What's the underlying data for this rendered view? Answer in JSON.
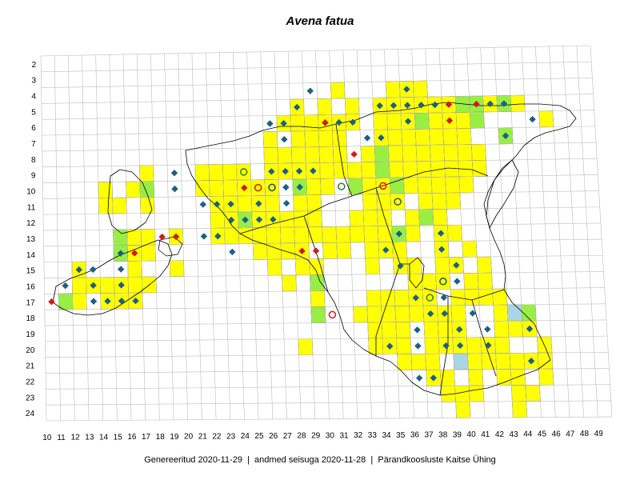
{
  "title": "Avena fatua",
  "footer": {
    "generated": "Genereeritud 2020-11-29",
    "data_state": "andmed seisuga 2020-11-28",
    "org": "Pärandkoosluste Kaitse Ühing",
    "separator": "|"
  },
  "colors": {
    "grid_line": "#bdbdbd",
    "outline": "#000000",
    "cell_yellow": "#ffff00",
    "cell_green": "#99ee44",
    "cell_blue": "#a9d6e5",
    "diamond_blue": "#1a5f8a",
    "diamond_red": "#d11a1a",
    "circle_green": "#2e7d32",
    "circle_red": "#d11a1a",
    "circle_blue": "#1a5f8a"
  },
  "legend_symbols": {
    "diamond": "diamond-marker",
    "circle": "circle-marker"
  },
  "chart_data": {
    "type": "grid-distribution-map",
    "x_ticks": [
      "10",
      "11",
      "12",
      "13",
      "14",
      "15",
      "16",
      "17",
      "18",
      "19",
      "20",
      "21",
      "22",
      "23",
      "24",
      "25",
      "26",
      "27",
      "28",
      "29",
      "30",
      "31",
      "32",
      "33",
      "34",
      "35",
      "36",
      "37",
      "38",
      "39",
      "40",
      "41",
      "42",
      "43",
      "44",
      "45",
      "46",
      "47",
      "48",
      "49"
    ],
    "y_ticks": [
      "2",
      "3",
      "4",
      "5",
      "6",
      "7",
      "8",
      "9",
      "10",
      "11",
      "12",
      "13",
      "14",
      "15",
      "16",
      "17",
      "18",
      "19",
      "20",
      "21",
      "22",
      "23",
      "24"
    ],
    "cells": {
      "yellow": [
        [
          35,
          4
        ],
        [
          36,
          4
        ],
        [
          37,
          4
        ],
        [
          31,
          4
        ],
        [
          28,
          5
        ],
        [
          30,
          5
        ],
        [
          32,
          5
        ],
        [
          34,
          5
        ],
        [
          35,
          5
        ],
        [
          36,
          5
        ],
        [
          37,
          5
        ],
        [
          38,
          5
        ],
        [
          39,
          5
        ],
        [
          42,
          5
        ],
        [
          44,
          5
        ],
        [
          27,
          6
        ],
        [
          28,
          6
        ],
        [
          29,
          6
        ],
        [
          30,
          6
        ],
        [
          31,
          6
        ],
        [
          32,
          6
        ],
        [
          34,
          6
        ],
        [
          35,
          6
        ],
        [
          36,
          6
        ],
        [
          37,
          6
        ],
        [
          38,
          6
        ],
        [
          39,
          6
        ],
        [
          40,
          6
        ],
        [
          46,
          6
        ],
        [
          26,
          7
        ],
        [
          28,
          7
        ],
        [
          29,
          7
        ],
        [
          30,
          7
        ],
        [
          31,
          7
        ],
        [
          34,
          7
        ],
        [
          35,
          7
        ],
        [
          36,
          7
        ],
        [
          37,
          7
        ],
        [
          38,
          7
        ],
        [
          39,
          7
        ],
        [
          40,
          7
        ],
        [
          26,
          8
        ],
        [
          27,
          8
        ],
        [
          28,
          8
        ],
        [
          29,
          8
        ],
        [
          30,
          8
        ],
        [
          31,
          8
        ],
        [
          33,
          8
        ],
        [
          35,
          8
        ],
        [
          36,
          8
        ],
        [
          37,
          8
        ],
        [
          38,
          8
        ],
        [
          39,
          8
        ],
        [
          40,
          8
        ],
        [
          41,
          8
        ],
        [
          17,
          9
        ],
        [
          21,
          9
        ],
        [
          22,
          9
        ],
        [
          23,
          9
        ],
        [
          24,
          9
        ],
        [
          26,
          9
        ],
        [
          27,
          9
        ],
        [
          28,
          9
        ],
        [
          29,
          9
        ],
        [
          30,
          9
        ],
        [
          31,
          9
        ],
        [
          32,
          9
        ],
        [
          33,
          9
        ],
        [
          35,
          9
        ],
        [
          36,
          9
        ],
        [
          37,
          9
        ],
        [
          38,
          9
        ],
        [
          39,
          9
        ],
        [
          40,
          9
        ],
        [
          41,
          9
        ],
        [
          14,
          10
        ],
        [
          16,
          10
        ],
        [
          21,
          10
        ],
        [
          22,
          10
        ],
        [
          23,
          10
        ],
        [
          24,
          10
        ],
        [
          25,
          10
        ],
        [
          26,
          10
        ],
        [
          28,
          10
        ],
        [
          29,
          10
        ],
        [
          30,
          10
        ],
        [
          32,
          10
        ],
        [
          33,
          10
        ],
        [
          34,
          10
        ],
        [
          36,
          10
        ],
        [
          37,
          10
        ],
        [
          38,
          10
        ],
        [
          39,
          10
        ],
        [
          40,
          10
        ],
        [
          14,
          11
        ],
        [
          15,
          11
        ],
        [
          17,
          11
        ],
        [
          22,
          11
        ],
        [
          23,
          11
        ],
        [
          24,
          11
        ],
        [
          25,
          11
        ],
        [
          26,
          11
        ],
        [
          28,
          11
        ],
        [
          29,
          11
        ],
        [
          33,
          11
        ],
        [
          34,
          11
        ],
        [
          35,
          11
        ],
        [
          37,
          11
        ],
        [
          38,
          11
        ],
        [
          39,
          11
        ],
        [
          22,
          12
        ],
        [
          23,
          12
        ],
        [
          24,
          12
        ],
        [
          25,
          12
        ],
        [
          26,
          12
        ],
        [
          27,
          12
        ],
        [
          28,
          12
        ],
        [
          29,
          12
        ],
        [
          32,
          12
        ],
        [
          33,
          12
        ],
        [
          34,
          12
        ],
        [
          36,
          12
        ],
        [
          37,
          12
        ],
        [
          38,
          12
        ],
        [
          16,
          13
        ],
        [
          17,
          13
        ],
        [
          19,
          13
        ],
        [
          22,
          13
        ],
        [
          23,
          13
        ],
        [
          24,
          13
        ],
        [
          25,
          13
        ],
        [
          26,
          13
        ],
        [
          27,
          13
        ],
        [
          28,
          13
        ],
        [
          29,
          13
        ],
        [
          30,
          13
        ],
        [
          31,
          13
        ],
        [
          32,
          13
        ],
        [
          33,
          13
        ],
        [
          34,
          13
        ],
        [
          36,
          13
        ],
        [
          38,
          13
        ],
        [
          39,
          13
        ],
        [
          16,
          14
        ],
        [
          17,
          14
        ],
        [
          25,
          14
        ],
        [
          26,
          14
        ],
        [
          27,
          14
        ],
        [
          28,
          14
        ],
        [
          30,
          14
        ],
        [
          31,
          14
        ],
        [
          33,
          14
        ],
        [
          34,
          14
        ],
        [
          35,
          14
        ],
        [
          38,
          14
        ],
        [
          40,
          14
        ],
        [
          12,
          15
        ],
        [
          16,
          15
        ],
        [
          19,
          15
        ],
        [
          26,
          15
        ],
        [
          28,
          15
        ],
        [
          29,
          15
        ],
        [
          33,
          15
        ],
        [
          35,
          15
        ],
        [
          36,
          15
        ],
        [
          38,
          15
        ],
        [
          39,
          15
        ],
        [
          41,
          15
        ],
        [
          12,
          16
        ],
        [
          13,
          16
        ],
        [
          14,
          16
        ],
        [
          15,
          16
        ],
        [
          16,
          16
        ],
        [
          17,
          16
        ],
        [
          27,
          16
        ],
        [
          29,
          16
        ],
        [
          36,
          16
        ],
        [
          37,
          16
        ],
        [
          38,
          16
        ],
        [
          40,
          16
        ],
        [
          41,
          16
        ],
        [
          11,
          17
        ],
        [
          12,
          17
        ],
        [
          14,
          17
        ],
        [
          15,
          17
        ],
        [
          16,
          17
        ],
        [
          29,
          17
        ],
        [
          33,
          17
        ],
        [
          34,
          17
        ],
        [
          35,
          17
        ],
        [
          36,
          17
        ],
        [
          37,
          17
        ],
        [
          39,
          17
        ],
        [
          40,
          17
        ],
        [
          41,
          17
        ],
        [
          42,
          17
        ],
        [
          29,
          18
        ],
        [
          32,
          18
        ],
        [
          33,
          18
        ],
        [
          34,
          18
        ],
        [
          35,
          18
        ],
        [
          36,
          18
        ],
        [
          37,
          18
        ],
        [
          38,
          18
        ],
        [
          39,
          18
        ],
        [
          42,
          18
        ],
        [
          43,
          18
        ],
        [
          33,
          19
        ],
        [
          34,
          19
        ],
        [
          35,
          19
        ],
        [
          37,
          19
        ],
        [
          38,
          19
        ],
        [
          39,
          19
        ],
        [
          42,
          19
        ],
        [
          43,
          19
        ],
        [
          44,
          19
        ],
        [
          28,
          20
        ],
        [
          33,
          20
        ],
        [
          34,
          20
        ],
        [
          35,
          20
        ],
        [
          37,
          20
        ],
        [
          38,
          20
        ],
        [
          39,
          20
        ],
        [
          40,
          20
        ],
        [
          41,
          20
        ],
        [
          42,
          20
        ],
        [
          45,
          20
        ],
        [
          35,
          21
        ],
        [
          36,
          21
        ],
        [
          37,
          21
        ],
        [
          39,
          21
        ],
        [
          40,
          21
        ],
        [
          41,
          21
        ],
        [
          42,
          21
        ],
        [
          43,
          21
        ],
        [
          44,
          21
        ],
        [
          45,
          21
        ],
        [
          37,
          22
        ],
        [
          38,
          22
        ],
        [
          40,
          22
        ],
        [
          42,
          22
        ],
        [
          43,
          22
        ],
        [
          45,
          22
        ],
        [
          38,
          23
        ],
        [
          39,
          23
        ],
        [
          40,
          23
        ],
        [
          43,
          23
        ],
        [
          44,
          23
        ],
        [
          39,
          24
        ],
        [
          43,
          24
        ]
      ],
      "green": [
        [
          40,
          5
        ],
        [
          41,
          5
        ],
        [
          43,
          5
        ],
        [
          37,
          6
        ],
        [
          41,
          6
        ],
        [
          43,
          7
        ],
        [
          34,
          8
        ],
        [
          34,
          9
        ],
        [
          17,
          10
        ],
        [
          28,
          10
        ],
        [
          32,
          10
        ],
        [
          35,
          10
        ],
        [
          15,
          13
        ],
        [
          35,
          13
        ],
        [
          15,
          14
        ],
        [
          24,
          12
        ],
        [
          29,
          16
        ],
        [
          11,
          17
        ],
        [
          29,
          18
        ],
        [
          44,
          18
        ],
        [
          37,
          12
        ]
      ],
      "blue": [
        [
          43,
          18
        ],
        [
          39,
          21
        ]
      ]
    },
    "markers": {
      "diamond_blue": [
        [
          29,
          4
        ],
        [
          36,
          4
        ],
        [
          28,
          5
        ],
        [
          34,
          5
        ],
        [
          35,
          5
        ],
        [
          36,
          5
        ],
        [
          37,
          5
        ],
        [
          38,
          5
        ],
        [
          42,
          5
        ],
        [
          43,
          5
        ],
        [
          26,
          6
        ],
        [
          27,
          6
        ],
        [
          30,
          6
        ],
        [
          31,
          6
        ],
        [
          32,
          6
        ],
        [
          36,
          6
        ],
        [
          45,
          6
        ],
        [
          27,
          7
        ],
        [
          33,
          7
        ],
        [
          34,
          7
        ],
        [
          43,
          7
        ],
        [
          19,
          9
        ],
        [
          26,
          9
        ],
        [
          27,
          9
        ],
        [
          28,
          9
        ],
        [
          29,
          9
        ],
        [
          19,
          10
        ],
        [
          27,
          10
        ],
        [
          28,
          10
        ],
        [
          21,
          11
        ],
        [
          22,
          11
        ],
        [
          23,
          11
        ],
        [
          25,
          11
        ],
        [
          27,
          11
        ],
        [
          23,
          12
        ],
        [
          24,
          12
        ],
        [
          25,
          12
        ],
        [
          26,
          12
        ],
        [
          21,
          13
        ],
        [
          22,
          13
        ],
        [
          35,
          13
        ],
        [
          38,
          13
        ],
        [
          15,
          14
        ],
        [
          23,
          14
        ],
        [
          34,
          14
        ],
        [
          38,
          14
        ],
        [
          12,
          15
        ],
        [
          13,
          15
        ],
        [
          15,
          15
        ],
        [
          35,
          15
        ],
        [
          39,
          15
        ],
        [
          11,
          16
        ],
        [
          13,
          16
        ],
        [
          15,
          16
        ],
        [
          39,
          16
        ],
        [
          13,
          17
        ],
        [
          14,
          17
        ],
        [
          15,
          17
        ],
        [
          16,
          17
        ],
        [
          36,
          17
        ],
        [
          38,
          17
        ],
        [
          37,
          18
        ],
        [
          38,
          18
        ],
        [
          40,
          18
        ],
        [
          36,
          19
        ],
        [
          39,
          19
        ],
        [
          41,
          19
        ],
        [
          44,
          19
        ],
        [
          34,
          20
        ],
        [
          36,
          20
        ],
        [
          38,
          20
        ],
        [
          39,
          20
        ],
        [
          41,
          20
        ],
        [
          44,
          21
        ],
        [
          36,
          22
        ],
        [
          37,
          22
        ]
      ],
      "diamond_red": [
        [
          39,
          5
        ],
        [
          41,
          5
        ],
        [
          39,
          6
        ],
        [
          30,
          6
        ],
        [
          32,
          8
        ],
        [
          24,
          10
        ],
        [
          18,
          13
        ],
        [
          19,
          13
        ],
        [
          16,
          14
        ],
        [
          28,
          14
        ],
        [
          29,
          14
        ],
        [
          10,
          17
        ]
      ],
      "circle_green": [
        [
          24,
          9
        ],
        [
          31,
          10
        ],
        [
          38,
          16
        ],
        [
          37,
          17
        ]
      ],
      "circle_red": [
        [
          25,
          10
        ],
        [
          26,
          10
        ],
        [
          34,
          10
        ],
        [
          30,
          18
        ]
      ],
      "circle_blue": [
        [
          26,
          10
        ],
        [
          35,
          11
        ],
        [
          38,
          16
        ]
      ]
    }
  }
}
